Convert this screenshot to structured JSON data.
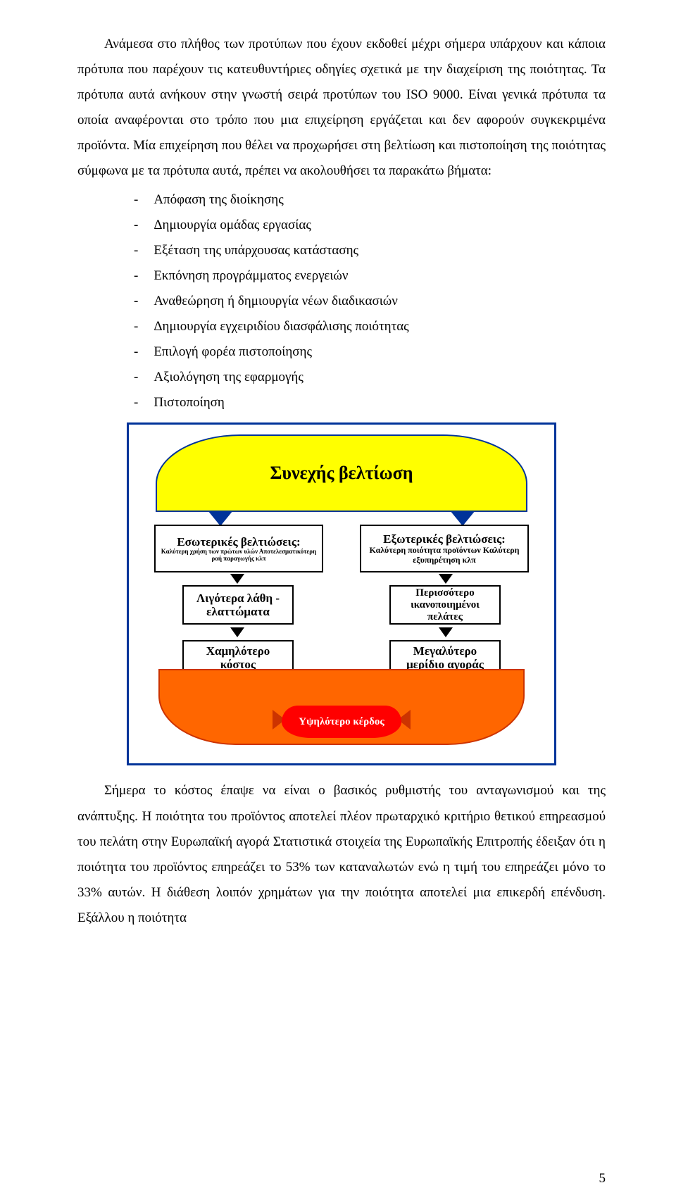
{
  "text": {
    "p1": "Ανάμεσα στο πλήθος των προτύπων που έχουν εκδοθεί μέχρι σήμερα υπάρχουν και κάποια πρότυπα που παρέχουν τις κατευθυντήριες οδηγίες σχετικά με την διαχείριση της ποιότητας. Τα πρότυπα αυτά ανήκουν στην γνωστή σειρά προτύπων του ISO 9000. Είναι γενικά πρότυπα τα οποία αναφέρονται στο τρόπο που μια επιχείρηση εργάζεται και δεν αφορούν συγκεκριμένα προϊόντα.  Μία επιχείρηση που θέλει να προχωρήσει στη βελτίωση και πιστοποίηση της ποιότητας σύμφωνα με τα πρότυπα αυτά,  πρέπει να ακολουθήσει τα παρακάτω βήματα:",
    "bullets": [
      "Απόφαση της διοίκησης",
      "Δημιουργία ομάδας εργασίας",
      "Εξέταση της υπάρχουσας κατάστασης",
      "Εκπόνηση προγράμματος ενεργειών",
      "Αναθεώρηση ή δημιουργία νέων διαδικασιών",
      "Δημιουργία εγχειριδίου διασφάλισης ποιότητας",
      "Επιλογή φορέα πιστοποίησης",
      "Αξιολόγηση της εφαρμογής",
      "Πιστοποίηση"
    ],
    "p2": "Σήμερα το κόστος έπαψε να είναι ο βασικός ρυθμιστής του ανταγωνισμού και της ανάπτυξης. Η ποιότητα του προϊόντος αποτελεί πλέον πρωταρχικό κριτήριο θετικού επηρεασμού του πελάτη στην Ευρωπαϊκή αγορά Στατιστικά στοιχεία της Ευρωπαϊκής Επιτροπής έδειξαν ότι η ποιότητα του προϊόντος επηρεάζει το 53% των καταναλωτών ενώ η τιμή του επηρεάζει μόνο το 33% αυτών. Η διάθεση λοιπόν χρημάτων για την ποιότητα αποτελεί μια επικερδή επένδυση. Εξάλλου  η ποιότητα",
    "page_number": "5"
  },
  "diagram": {
    "type": "flowchart",
    "border_color": "#003399",
    "top_banner": {
      "label": "Συνεχής βελτίωση",
      "bg": "#ffff00",
      "font_size": 26
    },
    "left_col": [
      {
        "title": "Εσωτερικές βελτιώσεις:",
        "sub": "Καλύτερη χρήση των πρώτων υλών Αποτελεσματικότερη ροή παραγωγής κλπ"
      },
      {
        "title": "Λιγότερα λάθη - ελαττώματα"
      },
      {
        "title": "Χαμηλότερο κόστος"
      }
    ],
    "right_col": [
      {
        "title": "Εξωτερικές βελτιώσεις:",
        "sub": "Καλύτερη ποιότητα προϊόντων Καλύτερη εξυπηρέτηση  κλπ"
      },
      {
        "title": "Περισσότερο ικανοποιημένοι πελάτες"
      },
      {
        "title": "Μεγαλύτερο μερίδιο αγοράς"
      }
    ],
    "bottom_band": {
      "bg": "#ff6600"
    },
    "profit_node": {
      "label": "Υψηλότερο κέρδος",
      "bg": "#ff0000",
      "text_color": "#ffffff"
    }
  }
}
